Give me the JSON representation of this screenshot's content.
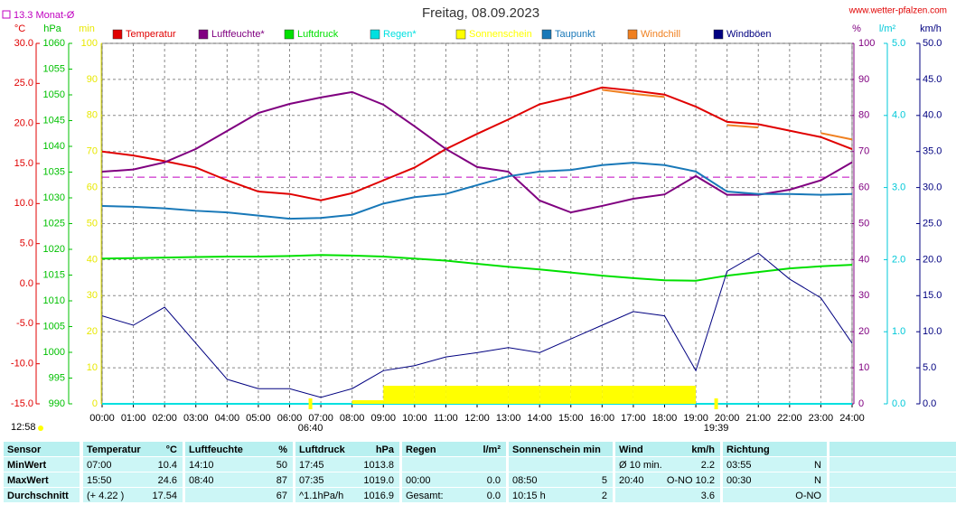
{
  "chart_data": {
    "type": "line",
    "title": "Freitag, 08.09.2023",
    "source": "www.wetter-pfalzen.com",
    "current_time": "12:58",
    "reference_line": {
      "label": "13.3 Monat-Ø",
      "value": 13.3,
      "axis": "°C",
      "color": "#c000c0"
    },
    "sun_events": [
      {
        "label": "06:40",
        "x": 6.667
      },
      {
        "label": "19:39",
        "x": 19.65
      }
    ],
    "xlim": [
      0,
      24
    ],
    "xticks": [
      {
        "value": 0,
        "label": "00:00"
      },
      {
        "value": 1,
        "label": "01:00"
      },
      {
        "value": 2,
        "label": "02:00"
      },
      {
        "value": 3,
        "label": "03:00"
      },
      {
        "value": 4,
        "label": "04:00"
      },
      {
        "value": 5,
        "label": "05:00"
      },
      {
        "value": 6,
        "label": "06:00"
      },
      {
        "value": 7,
        "label": "07:00"
      },
      {
        "value": 8,
        "label": "08:00"
      },
      {
        "value": 9,
        "label": "09:00"
      },
      {
        "value": 10,
        "label": "10:00"
      },
      {
        "value": 11,
        "label": "11:00"
      },
      {
        "value": 12,
        "label": "12:00"
      },
      {
        "value": 13,
        "label": "13:00"
      },
      {
        "value": 14,
        "label": "14:00"
      },
      {
        "value": 15,
        "label": "15:00"
      },
      {
        "value": 16,
        "label": "16:00"
      },
      {
        "value": 17,
        "label": "17:00"
      },
      {
        "value": 18,
        "label": "18:00"
      },
      {
        "value": 19,
        "label": "19:00"
      },
      {
        "value": 20,
        "label": "20:00"
      },
      {
        "value": 21,
        "label": "21:00"
      },
      {
        "value": 22,
        "label": "22:00"
      },
      {
        "value": 23,
        "label": "23:00"
      },
      {
        "value": 24,
        "label": "24:00"
      }
    ],
    "grid": true,
    "axes": [
      {
        "unit": "°C",
        "side": "left",
        "color": "#e00000",
        "lim": [
          -15,
          30
        ],
        "ticks": [
          {
            "value": 30,
            "label": "30.0"
          },
          {
            "value": 25,
            "label": "25.0"
          },
          {
            "value": 20,
            "label": "20.0"
          },
          {
            "value": 15,
            "label": "15.0"
          },
          {
            "value": 10,
            "label": "10.0"
          },
          {
            "value": 5,
            "label": "5.0"
          },
          {
            "value": 0,
            "label": "0.0"
          },
          {
            "value": -5,
            "label": "-5.0"
          },
          {
            "value": -10,
            "label": "-10.0"
          },
          {
            "value": -15,
            "label": "-15.0"
          }
        ]
      },
      {
        "unit": "hPa",
        "side": "left",
        "color": "#00c000",
        "lim": [
          990,
          1060
        ],
        "ticks": [
          1060,
          1055,
          1050,
          1045,
          1040,
          1035,
          1030,
          1025,
          1020,
          1015,
          1010,
          1005,
          1000,
          995,
          990
        ]
      },
      {
        "unit": "min",
        "side": "left",
        "color": "#e8e800",
        "lim": [
          0,
          100
        ],
        "ticks": [
          100,
          90,
          80,
          70,
          60,
          50,
          40,
          30,
          20,
          10,
          0
        ]
      },
      {
        "unit": "%",
        "side": "right",
        "color": "#800080",
        "lim": [
          0,
          100
        ],
        "ticks": [
          100,
          90,
          80,
          70,
          60,
          50,
          40,
          30,
          20,
          10,
          0
        ],
        "grid": true
      },
      {
        "unit": "l/m²",
        "side": "right",
        "color": "#00c8d8",
        "lim": [
          0,
          5
        ],
        "ticks": [
          {
            "value": 5,
            "label": "5.0"
          },
          {
            "value": 4,
            "label": "4.0"
          },
          {
            "value": 3,
            "label": "3.0"
          },
          {
            "value": 2,
            "label": "2.0"
          },
          {
            "value": 1,
            "label": "1.0"
          },
          {
            "value": 0,
            "label": "0.0"
          }
        ]
      },
      {
        "unit": "km/h",
        "side": "right",
        "color": "#000080",
        "lim": [
          0,
          50
        ],
        "ticks": [
          {
            "value": 50,
            "label": "50.0"
          },
          {
            "value": 45,
            "label": "45.0"
          },
          {
            "value": 40,
            "label": "40.0"
          },
          {
            "value": 35,
            "label": "35.0"
          },
          {
            "value": 30,
            "label": "30.0"
          },
          {
            "value": 25,
            "label": "25.0"
          },
          {
            "value": 20,
            "label": "20.0"
          },
          {
            "value": 15,
            "label": "15.0"
          },
          {
            "value": 10,
            "label": "10.0"
          },
          {
            "value": 5,
            "label": "5.0"
          },
          {
            "value": 0,
            "label": "0.0"
          }
        ]
      }
    ],
    "x": [
      0,
      1,
      2,
      3,
      4,
      5,
      6,
      7,
      8,
      9,
      10,
      11,
      12,
      13,
      14,
      15,
      16,
      17,
      18,
      19,
      20,
      21,
      22,
      23,
      24
    ],
    "series": [
      {
        "name": "Temperatur",
        "color": "#e00000",
        "axis": "°C",
        "style": "line",
        "values": [
          16.5,
          16.0,
          15.3,
          14.5,
          12.9,
          11.5,
          11.2,
          10.4,
          11.3,
          12.9,
          14.5,
          16.8,
          18.7,
          20.5,
          22.4,
          23.3,
          24.5,
          24.1,
          23.6,
          22.1,
          20.2,
          19.9,
          19.1,
          18.3,
          16.8
        ]
      },
      {
        "name": "Luftfeuchte*",
        "color": "#800080",
        "axis": "%",
        "style": "line",
        "values": [
          64.4,
          65,
          67,
          70.7,
          75.7,
          80.7,
          83.2,
          85,
          86.5,
          83,
          77,
          70.7,
          65.7,
          64.4,
          56.4,
          53.1,
          54.9,
          56.9,
          58.1,
          63.2,
          58,
          58,
          59.4,
          62,
          67
        ]
      },
      {
        "name": "Luftdruck",
        "color": "#00e000",
        "axis": "hPa",
        "style": "line",
        "values": [
          1018.2,
          1018.3,
          1018.4,
          1018.5,
          1018.6,
          1018.6,
          1018.7,
          1018.9,
          1018.8,
          1018.6,
          1018.2,
          1017.8,
          1017.2,
          1016.6,
          1016.1,
          1015.5,
          1014.9,
          1014.4,
          1014.0,
          1013.9,
          1014.9,
          1015.6,
          1016.3,
          1016.7,
          1017.0
        ]
      },
      {
        "name": "Regen*",
        "color": "#00e0e0",
        "axis": "l/m²",
        "style": "line",
        "values": [
          0,
          0,
          0,
          0,
          0,
          0,
          0,
          0,
          0,
          0,
          0,
          0,
          0,
          0,
          0,
          0,
          0,
          0,
          0,
          0,
          0,
          0,
          0,
          0,
          0
        ]
      },
      {
        "name": "Sonnenschein",
        "color": "#ffff00",
        "axis": "min",
        "style": "bar",
        "values": [
          0,
          0,
          0,
          0,
          0,
          0,
          0,
          0,
          1,
          5,
          5,
          5,
          5,
          5,
          5,
          5,
          5,
          5,
          5,
          0,
          0,
          0,
          0,
          0,
          0
        ]
      },
      {
        "name": "Taupunkt",
        "color": "#1878b8",
        "axis": "°C",
        "style": "line",
        "values": [
          9.7,
          9.6,
          9.4,
          9.1,
          8.9,
          8.5,
          8.1,
          8.2,
          8.6,
          10.0,
          10.8,
          11.2,
          12.3,
          13.4,
          14.0,
          14.2,
          14.8,
          15.1,
          14.8,
          14.0,
          11.5,
          11.2,
          11.2,
          11.1,
          11.2
        ]
      },
      {
        "name": "Windchill",
        "color": "#f08020",
        "axis": "°C",
        "style": "line",
        "values": [
          null,
          null,
          null,
          null,
          null,
          null,
          null,
          null,
          null,
          null,
          null,
          null,
          null,
          null,
          null,
          null,
          24.2,
          23.7,
          23.3,
          null,
          19.8,
          19.5,
          null,
          18.8,
          18.0
        ]
      },
      {
        "name": "Windböen",
        "color": "#000080",
        "axis": "km/h",
        "style": "line",
        "values": [
          12.2,
          10.9,
          13.4,
          8.4,
          3.4,
          2.1,
          2.1,
          0.9,
          2.1,
          4.6,
          5.3,
          6.5,
          7.1,
          7.8,
          7.1,
          9.0,
          10.9,
          12.8,
          12.2,
          4.6,
          18.4,
          20.9,
          17.3,
          14.7,
          8.4
        ]
      }
    ]
  },
  "table": {
    "header": [
      {
        "left": "Sensor"
      },
      {
        "left": "Temperatur",
        "right": "°C"
      },
      {
        "left": "Luftfeuchte",
        "right": "%"
      },
      {
        "left": "Luftdruck",
        "right": "hPa"
      },
      {
        "left": "Regen",
        "right": "l/m²"
      },
      {
        "left": "Sonnenschein min"
      },
      {
        "left": "Wind",
        "right": "km/h"
      },
      {
        "left": "Richtung"
      }
    ],
    "rows": [
      [
        {
          "left": "MinWert"
        },
        {
          "left": "07:00",
          "right": "10.4"
        },
        {
          "left": "14:10",
          "right": "50"
        },
        {
          "left": "17:45",
          "right": "1013.8"
        },
        {},
        {},
        {
          "left": "Ø 10 min.",
          "right": "2.2"
        },
        {
          "left": "03:55",
          "right": "N"
        }
      ],
      [
        {
          "left": "MaxWert"
        },
        {
          "left": "15:50",
          "right": "24.6"
        },
        {
          "left": "08:40",
          "right": "87"
        },
        {
          "left": "07:35",
          "right": "1019.0"
        },
        {
          "left": "00:00",
          "right": "0.0"
        },
        {
          "left": "08:50",
          "right": "5"
        },
        {
          "left": "20:40",
          "right": "O-NO 10.2"
        },
        {
          "left": "00:30",
          "right": "N"
        }
      ],
      [
        {
          "left": "Durchschnitt"
        },
        {
          "left": "(+ 4.22 )",
          "right": "17.54"
        },
        {
          "right": "67"
        },
        {
          "left": "^1.1hPa/h",
          "right": "1016.9"
        },
        {
          "left": "Gesamt:",
          "right": "0.0"
        },
        {
          "left": "10:15 h",
          "right": "2"
        },
        {
          "right": "3.6"
        },
        {
          "right": "O-NO"
        }
      ]
    ]
  }
}
